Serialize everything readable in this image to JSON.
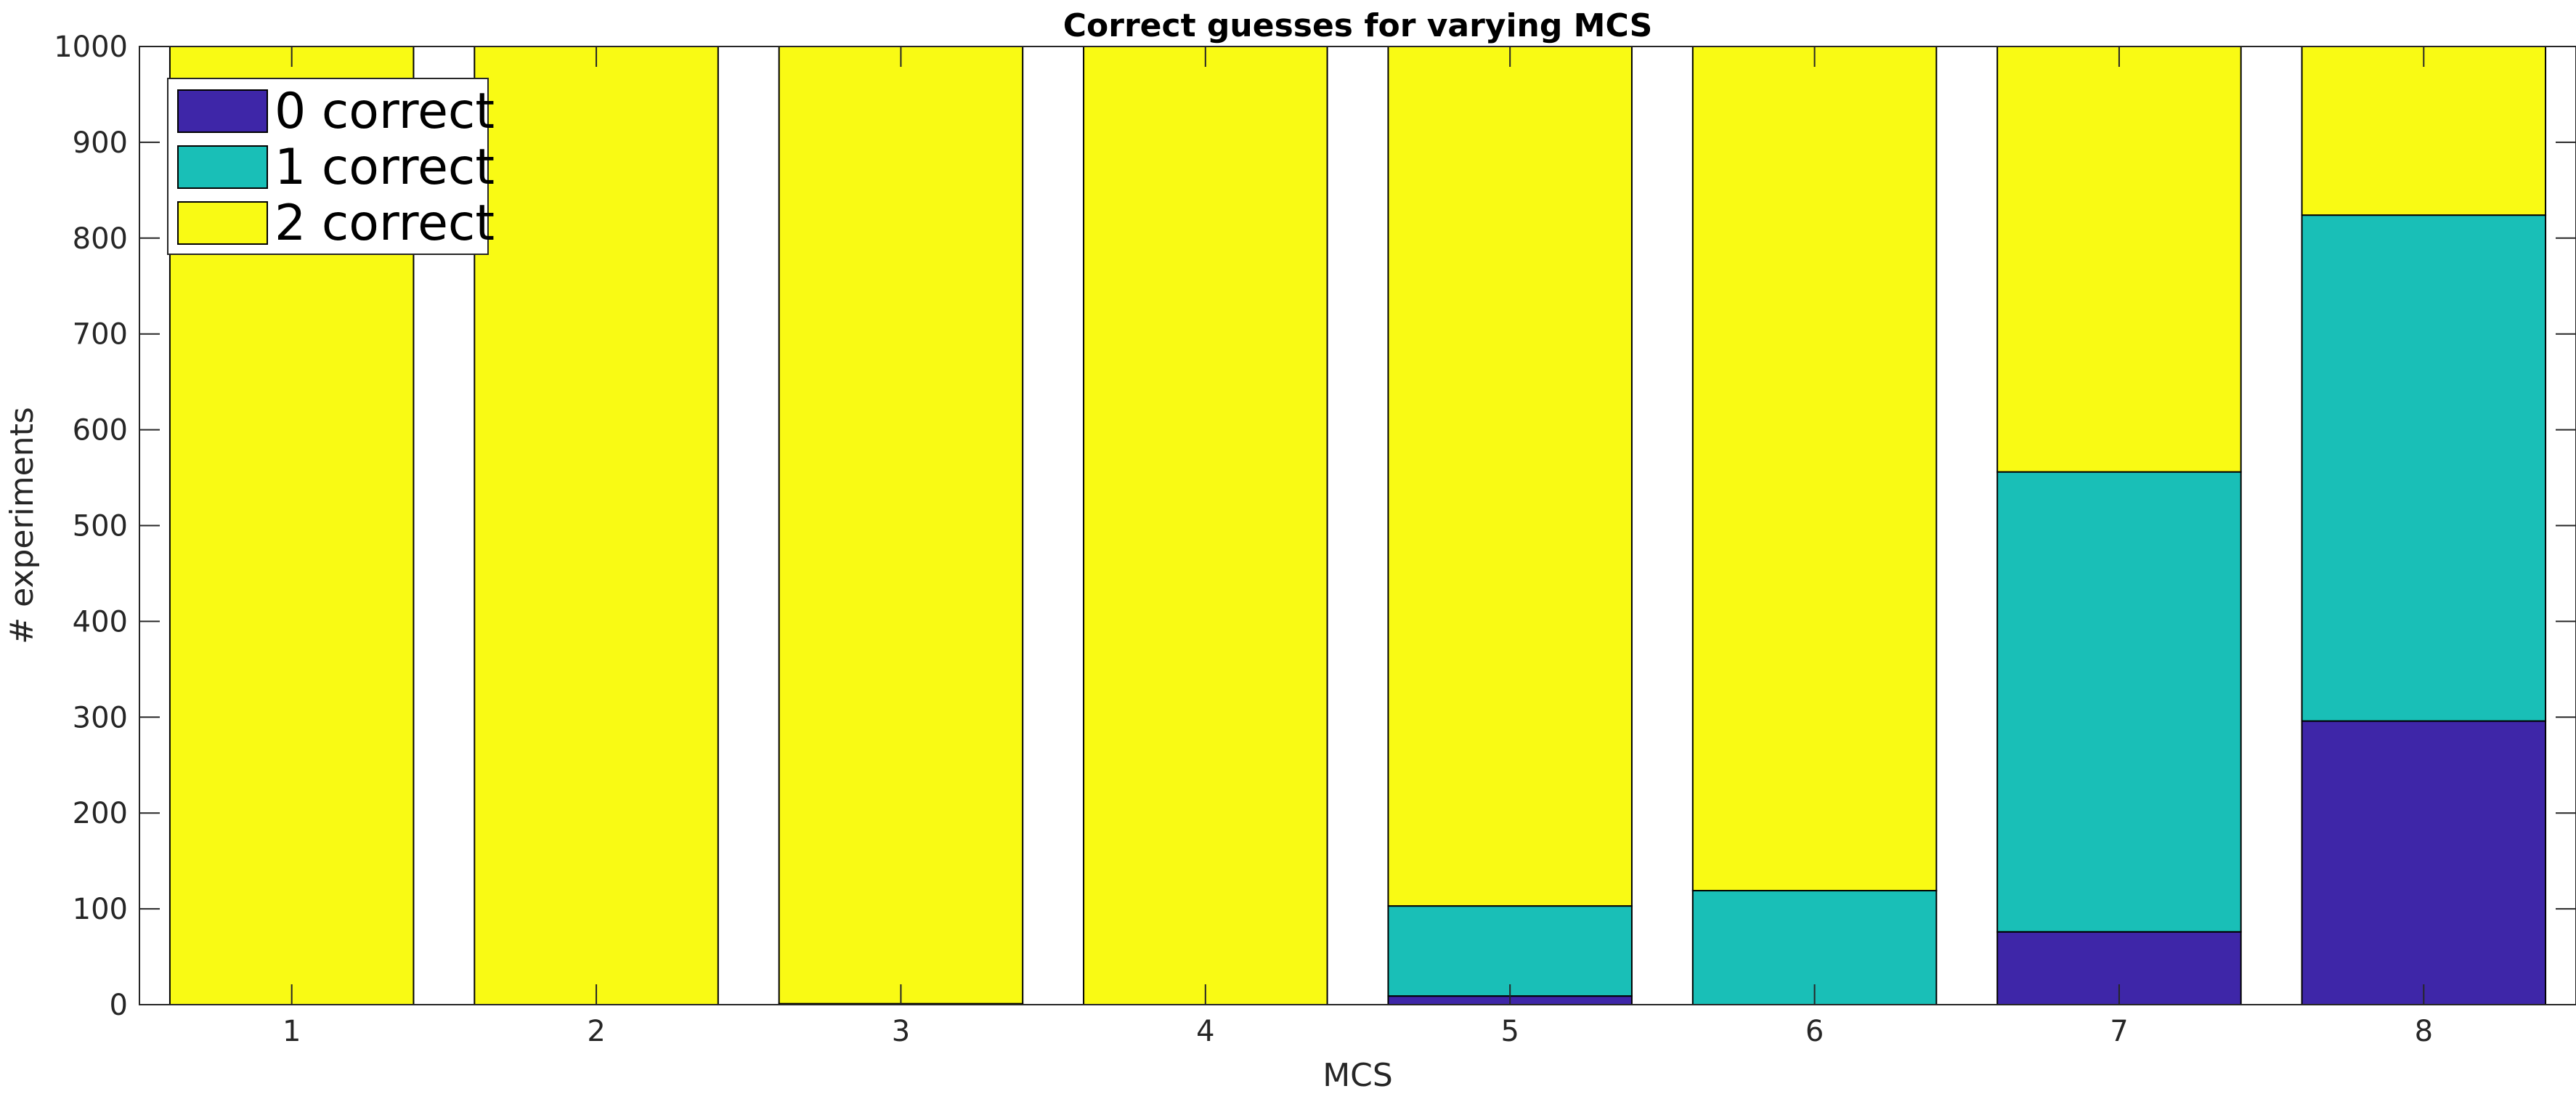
{
  "chart_data": {
    "type": "bar",
    "stacked": true,
    "title": "Correct guesses for varying MCS",
    "xlabel": "MCS",
    "ylabel": "# experiments",
    "categories": [
      "1",
      "2",
      "3",
      "4",
      "5",
      "6",
      "7",
      "8"
    ],
    "ylim": [
      0,
      1000
    ],
    "yticks": [
      "0",
      "100",
      "200",
      "300",
      "400",
      "500",
      "600",
      "700",
      "800",
      "900",
      "1000"
    ],
    "grid": false,
    "legend_position": "top-left",
    "series": [
      {
        "name": "0 correct",
        "color": "#3e26a8",
        "values": [
          0,
          0,
          1,
          0,
          9,
          0,
          76,
          296
        ]
      },
      {
        "name": "1 correct",
        "color": "#19bfb7",
        "values": [
          0,
          0,
          0,
          0,
          94,
          119,
          480,
          528
        ]
      },
      {
        "name": "2 correct",
        "color": "#f9fa14",
        "values": [
          1000,
          1000,
          999,
          1000,
          897,
          881,
          444,
          176
        ]
      }
    ]
  }
}
